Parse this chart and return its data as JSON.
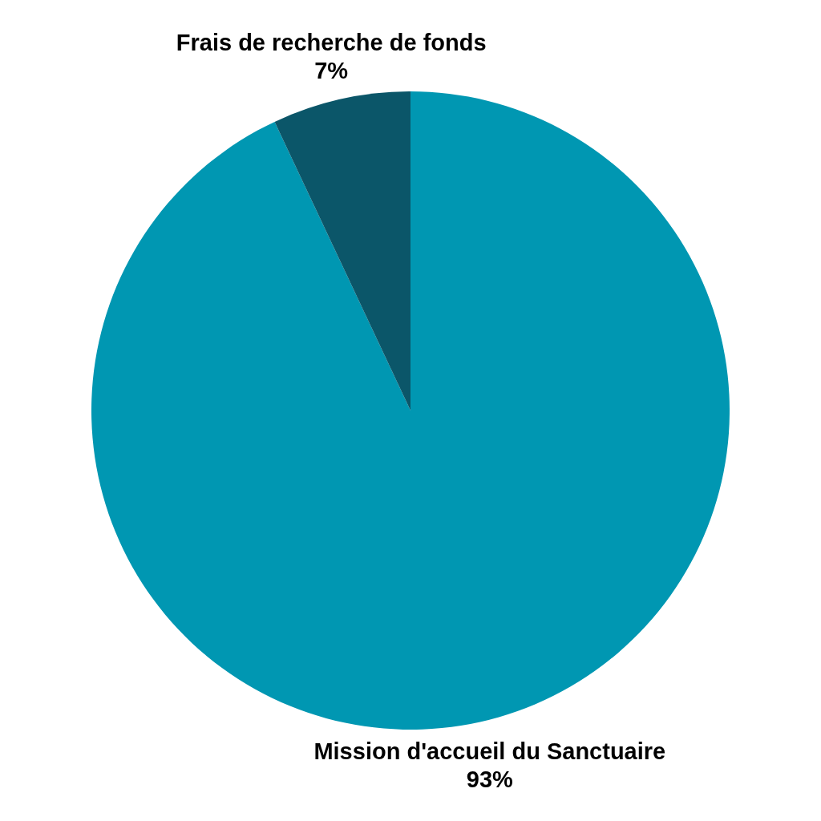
{
  "chart_data": {
    "type": "pie",
    "categories": [
      "Mission d'accueil du Sanctuaire",
      "Frais de recherche de fonds"
    ],
    "values": [
      93,
      7
    ],
    "colors": [
      "#0097b2",
      "#0b5669"
    ],
    "value_labels": [
      "93%",
      "7%"
    ]
  }
}
